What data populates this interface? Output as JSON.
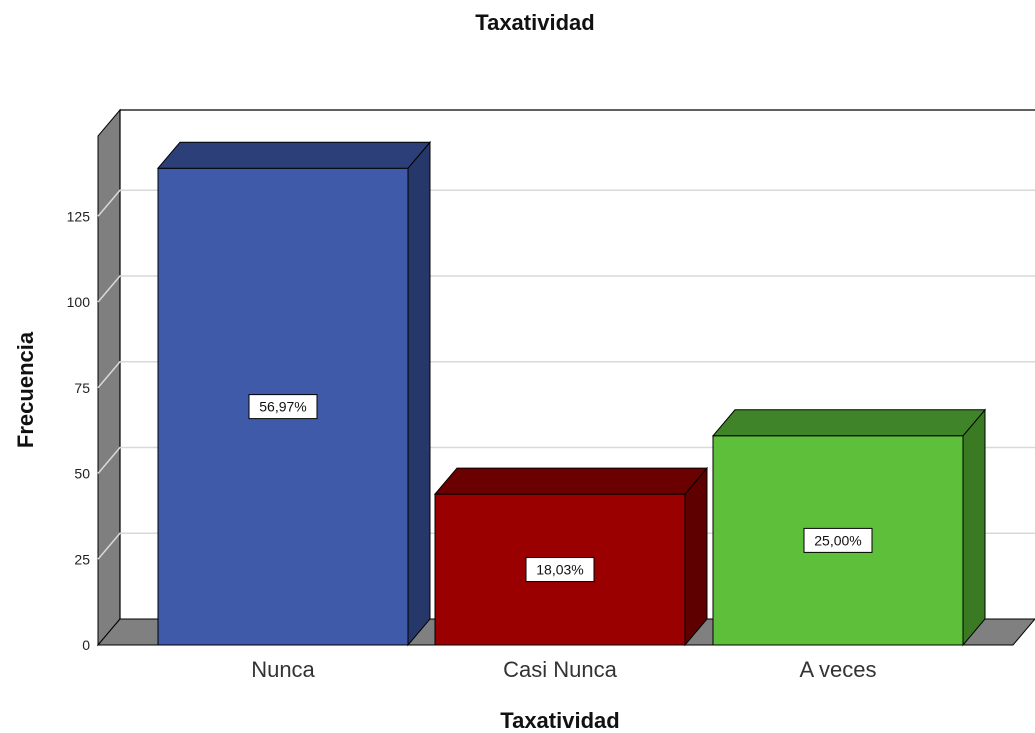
{
  "chart_data": {
    "type": "bar",
    "title": "Taxatividad",
    "xlabel": "Taxatividad",
    "ylabel": "Frecuencia",
    "categories": [
      "Nunca",
      "Casi Nunca",
      "A veces"
    ],
    "values": [
      139,
      44,
      61
    ],
    "data_labels": [
      "56,97%",
      "18,03%",
      "25,00%"
    ],
    "yticks": [
      0,
      25,
      50,
      75,
      100,
      125
    ],
    "ylim": [
      0,
      150
    ],
    "grid": true,
    "three_d": true,
    "colors": {
      "bars": [
        "#3e5aa8",
        "#9b0000",
        "#5ec03a"
      ],
      "bar_sides": [
        "#26386a",
        "#5e0000",
        "#3a7a22"
      ],
      "bar_tops": [
        "#2c3f78",
        "#6a0000",
        "#3f8428"
      ],
      "gridline": "#d9d9d9",
      "back_wall_edge": "#000000",
      "floor": "#808080"
    }
  }
}
